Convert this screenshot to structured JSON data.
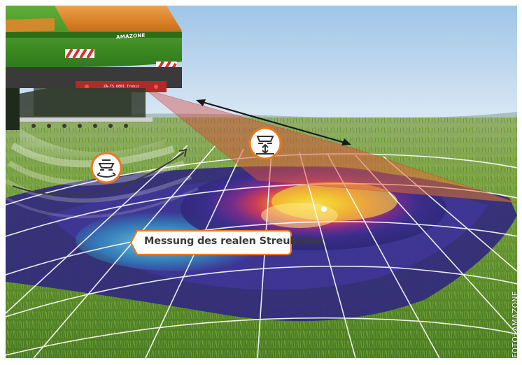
{
  "caption": {
    "text": "Messung des realen Streubildes"
  },
  "credit": {
    "text": "FOTO: AMAZONE"
  },
  "machine": {
    "brand": "AMAZONE",
    "plate": "ZA-TS 6001 Tronic"
  },
  "icons": [
    "spreader-tilt-icon",
    "spreader-height-icon"
  ],
  "colors": {
    "sky": "#b9d6ee",
    "field": "#5f8f2e",
    "machine_green": "#4f9a2a",
    "machine_orange": "#e87a1e",
    "heat_low": "#3b2d8c",
    "heat_mid": "#33b6d4",
    "heat_high": "#f2d024",
    "beam_red": "#d2322e"
  }
}
